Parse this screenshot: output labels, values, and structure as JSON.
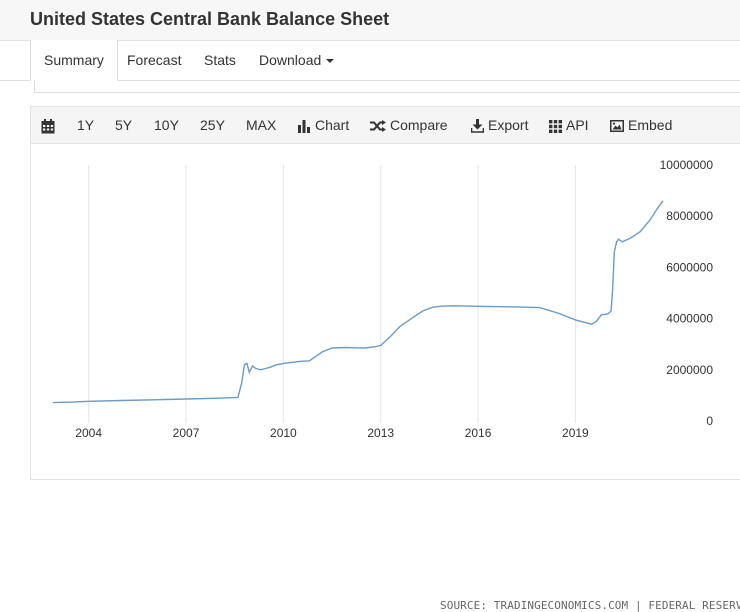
{
  "page": {
    "title": "United States Central Bank Balance Sheet"
  },
  "tabs": [
    {
      "label": "Summary",
      "active": true
    },
    {
      "label": "Forecast",
      "active": false
    },
    {
      "label": "Stats",
      "active": false
    },
    {
      "label": "Download",
      "active": false,
      "has_dropdown": true
    }
  ],
  "toolbar": {
    "calendar_icon": "calendar-icon",
    "ranges": [
      "1Y",
      "5Y",
      "10Y",
      "25Y",
      "MAX"
    ],
    "chart_label": "Chart",
    "compare_label": "Compare",
    "export_label": "Export",
    "api_label": "API",
    "embed_label": "Embed"
  },
  "chart_data": {
    "type": "line",
    "title": "",
    "xlabel": "",
    "ylabel": "",
    "x_ticks": [
      "2004",
      "2007",
      "2010",
      "2013",
      "2016",
      "2019"
    ],
    "y_ticks": [
      "0",
      "2000000",
      "4000000",
      "6000000",
      "8000000",
      "10000000"
    ],
    "xlim": [
      2002.9,
      2021.7
    ],
    "ylim": [
      0,
      10000000
    ],
    "grid": "vertical",
    "y_axis_position": "right",
    "color": "#6b9bc8",
    "series": [
      {
        "x": [
          2002.9,
          2003.5,
          2004.0,
          2005.0,
          2006.0,
          2007.0,
          2008.0,
          2008.6,
          2008.72,
          2008.8,
          2008.88,
          2008.95,
          2009.05,
          2009.15,
          2009.3,
          2009.45,
          2009.6,
          2009.8,
          2010.0,
          2010.5,
          2010.8,
          2011.2,
          2011.5,
          2011.9,
          2012.2,
          2012.5,
          2012.8,
          2013.0,
          2013.3,
          2013.6,
          2014.0,
          2014.3,
          2014.6,
          2014.9,
          2015.3,
          2016.0,
          2017.0,
          2017.9,
          2018.5,
          2019.0,
          2019.5,
          2019.65,
          2019.8,
          2020.0,
          2020.1,
          2020.15,
          2020.2,
          2020.27,
          2020.33,
          2020.45,
          2020.7,
          2021.0,
          2021.3,
          2021.5,
          2021.7
        ],
        "y": [
          720000,
          740000,
          770000,
          800000,
          830000,
          860000,
          890000,
          920000,
          1500000,
          2200000,
          2250000,
          1900000,
          2150000,
          2050000,
          2000000,
          2050000,
          2100000,
          2200000,
          2250000,
          2330000,
          2350000,
          2700000,
          2850000,
          2870000,
          2860000,
          2850000,
          2900000,
          2950000,
          3300000,
          3700000,
          4050000,
          4300000,
          4440000,
          4490000,
          4500000,
          4480000,
          4460000,
          4430000,
          4200000,
          3950000,
          3780000,
          3900000,
          4150000,
          4180000,
          4300000,
          5200000,
          6600000,
          7000000,
          7100000,
          7000000,
          7150000,
          7400000,
          7850000,
          8250000,
          8600000
        ]
      }
    ]
  },
  "source": {
    "prefix": "SOURCE: ",
    "provider": "TRADINGECONOMICS.COM",
    "separator": " | ",
    "origin": "FEDERAL RESERVE"
  }
}
